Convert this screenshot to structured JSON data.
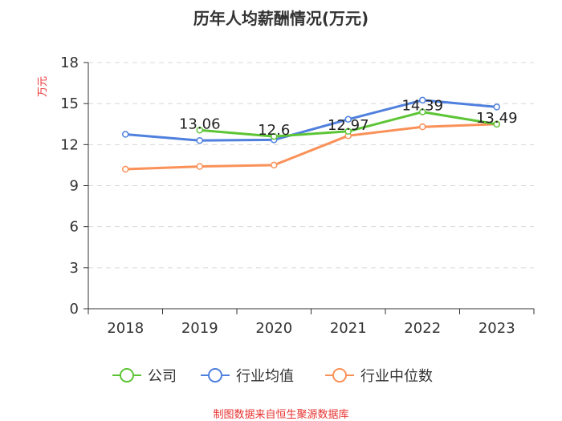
{
  "chart_data": {
    "type": "line",
    "title": "历年人均薪酬情况(万元)",
    "ylabel": "万元",
    "xlabel": "",
    "categories": [
      "2018",
      "2019",
      "2020",
      "2021",
      "2022",
      "2023"
    ],
    "ylim": [
      0,
      18
    ],
    "yticks": [
      0,
      3,
      6,
      9,
      12,
      15,
      18
    ],
    "grid": true,
    "legend_position": "bottom",
    "series": [
      {
        "name": "公司",
        "color": "#5cc535",
        "values": [
          null,
          13.06,
          12.6,
          12.97,
          14.39,
          13.49
        ],
        "labels": [
          "",
          "13.06",
          "12.6",
          "12.97",
          "14.39",
          "13.49"
        ]
      },
      {
        "name": "行业均值",
        "color": "#4f80de",
        "values": [
          12.75,
          12.3,
          12.35,
          13.85,
          15.25,
          14.75
        ]
      },
      {
        "name": "行业中位数",
        "color": "#fa9158",
        "values": [
          10.2,
          10.4,
          10.5,
          12.65,
          13.3,
          13.5
        ]
      }
    ],
    "source": "制图数据来自恒生聚源数据库"
  }
}
